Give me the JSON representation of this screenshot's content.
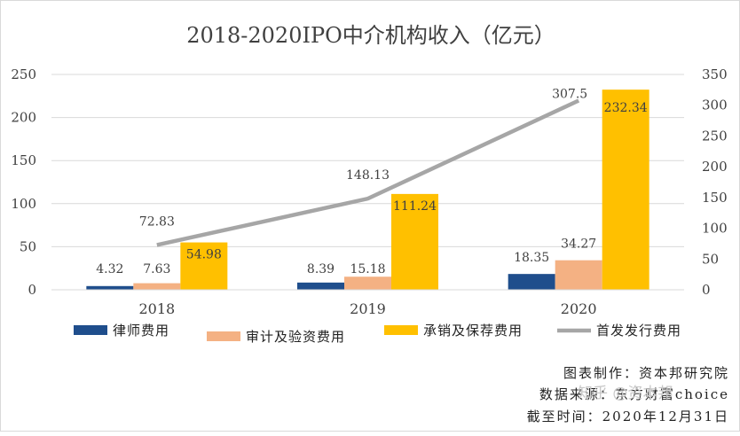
{
  "chart_data": {
    "type": "bar",
    "title": "2018-2020IPO中介机构收入（亿元）",
    "categories": [
      "2018",
      "2019",
      "2020"
    ],
    "series": [
      {
        "name": "律师费用",
        "kind": "bar",
        "axis": "left",
        "color": "#1f4e8c",
        "values": [
          4.32,
          8.39,
          18.35
        ],
        "labels": [
          "4.32",
          "8.39",
          "18.35"
        ]
      },
      {
        "name": "审计及验资费用",
        "kind": "bar",
        "axis": "left",
        "color": "#f4b183",
        "values": [
          7.63,
          15.18,
          34.27
        ],
        "labels": [
          "7.63",
          "15.18",
          "34.27"
        ]
      },
      {
        "name": "承销及保荐费用",
        "kind": "bar",
        "axis": "left",
        "color": "#ffc000",
        "values": [
          54.98,
          111.24,
          232.34
        ],
        "labels": [
          "54.98",
          "111.24",
          "232.34"
        ]
      },
      {
        "name": "首发发行费用",
        "kind": "line",
        "axis": "right",
        "color": "#a6a6a6",
        "values": [
          72.83,
          148.13,
          307.5
        ],
        "labels": [
          "72.83",
          "148.13",
          "307.5"
        ]
      }
    ],
    "ylim_left": [
      0,
      250
    ],
    "yticks_left": [
      "0",
      "50",
      "100",
      "150",
      "200",
      "250"
    ],
    "ylim_right": [
      0,
      350
    ],
    "yticks_right": [
      "0",
      "50",
      "100",
      "150",
      "200",
      "250",
      "300",
      "350"
    ],
    "grid": true,
    "legend_position": "bottom"
  },
  "notes": {
    "producer": "图表制作：资本邦研究院",
    "source": "数据来源：东方财富choice",
    "cutoff": "截至时间：2020年12月31日"
  },
  "watermark": "知乎 @资本邦"
}
